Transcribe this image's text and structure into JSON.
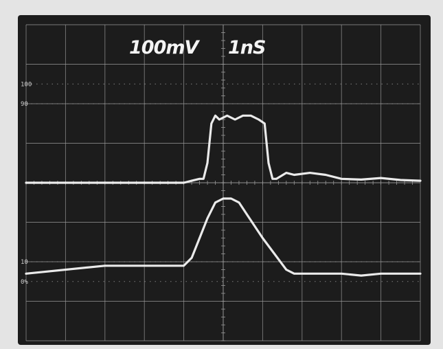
{
  "readouts": {
    "volts_per_div": "100mV",
    "time_per_div": "1nS"
  },
  "graticule_markers": [
    "100",
    "90",
    "10",
    "0%"
  ],
  "colors": {
    "bezel": "#e4e4e4",
    "screen": "#1c1c1c",
    "grid": "#9a9a9a",
    "trace": "#f6f6f6"
  },
  "chart_data": {
    "type": "line",
    "title": "",
    "xlabel": "",
    "ylabel": "",
    "x_unit": "ns",
    "y_unit": "div",
    "xlim": [
      -5,
      5
    ],
    "ylim": [
      -4,
      4
    ],
    "grid": true,
    "series": [
      {
        "x": [
          -5.0,
          -3.0,
          -1.0,
          -0.8,
          -0.6,
          -0.5,
          -0.4,
          -0.3,
          -0.2,
          -0.1,
          0.1,
          0.3,
          0.5,
          0.7,
          0.9,
          1.05,
          1.15,
          1.25,
          1.35,
          1.6,
          1.8,
          2.2,
          2.6,
          3.0,
          3.5,
          4.0,
          4.5,
          5.0
        ],
        "y": [
          0.0,
          0.0,
          0.0,
          0.05,
          0.1,
          0.1,
          0.5,
          1.5,
          1.7,
          1.6,
          1.7,
          1.6,
          1.7,
          1.7,
          1.6,
          1.5,
          0.5,
          0.1,
          0.1,
          0.25,
          0.2,
          0.25,
          0.2,
          0.1,
          0.08,
          0.12,
          0.07,
          0.05
        ]
      },
      {
        "x": [
          -5.0,
          -3.0,
          -1.0,
          -0.8,
          -0.6,
          -0.4,
          -0.2,
          0.0,
          0.2,
          0.4,
          0.6,
          0.8,
          1.0,
          1.3,
          1.6,
          1.8,
          2.0,
          2.5,
          3.0,
          3.5,
          4.0,
          4.5,
          5.0
        ],
        "y": [
          -2.3,
          -2.1,
          -2.1,
          -1.9,
          -1.4,
          -0.9,
          -0.5,
          -0.4,
          -0.4,
          -0.5,
          -0.8,
          -1.1,
          -1.4,
          -1.8,
          -2.2,
          -2.3,
          -2.3,
          -2.3,
          -2.3,
          -2.35,
          -2.3,
          -2.3,
          -2.3
        ]
      }
    ]
  }
}
